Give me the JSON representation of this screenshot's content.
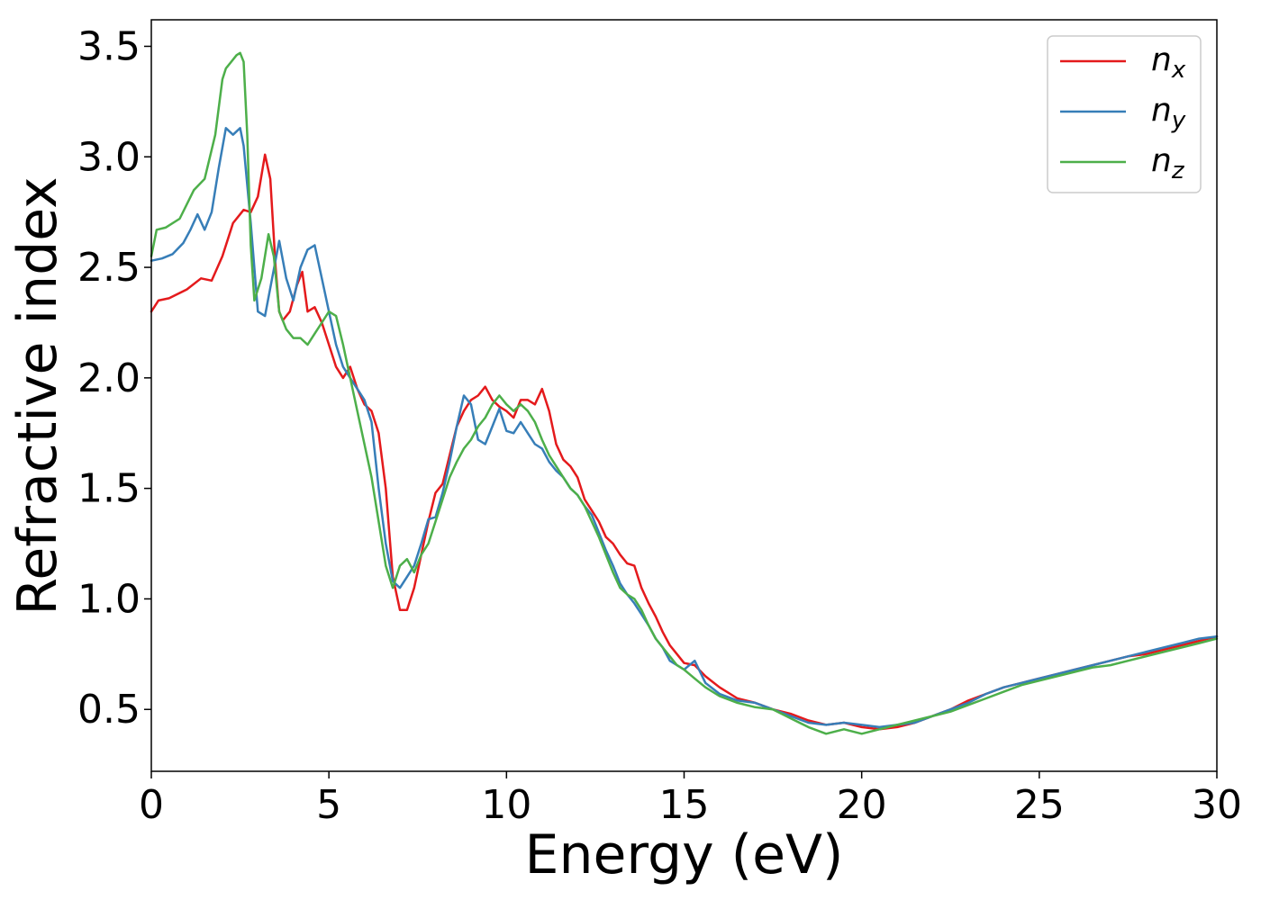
{
  "chart_data": {
    "type": "line",
    "xlabel": "Energy (eV)",
    "ylabel": "Refractive index",
    "xlim": [
      0,
      30
    ],
    "ylim": [
      0.22,
      3.62
    ],
    "xticks": [
      0,
      5,
      10,
      15,
      20,
      25,
      30
    ],
    "xtick_labels": [
      "0",
      "5",
      "10",
      "15",
      "20",
      "25",
      "30"
    ],
    "yticks": [
      0.5,
      1.0,
      1.5,
      2.0,
      2.5,
      3.0,
      3.5
    ],
    "ytick_labels": [
      "0.5",
      "1.0",
      "1.5",
      "2.0",
      "2.5",
      "3.0",
      "3.5"
    ],
    "grid": false,
    "legend_position": "top-right",
    "series": [
      {
        "name": "n_x",
        "name_main": "n",
        "name_sub": "x",
        "color": "#e41a1c",
        "x": [
          0,
          0.2,
          0.5,
          1.0,
          1.4,
          1.7,
          2.0,
          2.3,
          2.6,
          2.8,
          3.0,
          3.2,
          3.35,
          3.5,
          3.6,
          3.7,
          3.9,
          4.1,
          4.25,
          4.4,
          4.6,
          4.8,
          5.0,
          5.2,
          5.4,
          5.6,
          5.8,
          6.0,
          6.2,
          6.4,
          6.6,
          6.8,
          7.0,
          7.2,
          7.4,
          7.6,
          7.8,
          8.0,
          8.2,
          8.4,
          8.6,
          8.8,
          9.0,
          9.2,
          9.4,
          9.6,
          9.8,
          10.0,
          10.2,
          10.4,
          10.6,
          10.8,
          11.0,
          11.2,
          11.4,
          11.6,
          11.8,
          12.0,
          12.2,
          12.4,
          12.6,
          12.8,
          13.0,
          13.2,
          13.4,
          13.6,
          13.8,
          14.0,
          14.2,
          14.4,
          14.6,
          14.8,
          15.0,
          15.3,
          15.6,
          16.0,
          16.5,
          17.0,
          17.5,
          18.0,
          18.5,
          19.0,
          19.5,
          20.0,
          20.5,
          21.0,
          21.5,
          22.0,
          22.5,
          23.0,
          23.5,
          24.0,
          24.5,
          25.0,
          25.5,
          26.0,
          26.5,
          27.0,
          27.5,
          28.0,
          28.5,
          29.0,
          29.5,
          30.0
        ],
        "values": [
          2.3,
          2.35,
          2.36,
          2.4,
          2.45,
          2.44,
          2.55,
          2.7,
          2.76,
          2.75,
          2.82,
          3.01,
          2.9,
          2.5,
          2.3,
          2.26,
          2.3,
          2.42,
          2.48,
          2.3,
          2.32,
          2.25,
          2.15,
          2.05,
          2.0,
          2.05,
          1.95,
          1.88,
          1.85,
          1.75,
          1.5,
          1.1,
          0.95,
          0.95,
          1.05,
          1.2,
          1.35,
          1.48,
          1.52,
          1.65,
          1.78,
          1.85,
          1.9,
          1.92,
          1.96,
          1.9,
          1.87,
          1.85,
          1.82,
          1.9,
          1.9,
          1.88,
          1.95,
          1.85,
          1.7,
          1.63,
          1.6,
          1.55,
          1.45,
          1.4,
          1.35,
          1.28,
          1.25,
          1.2,
          1.16,
          1.15,
          1.05,
          0.98,
          0.92,
          0.85,
          0.79,
          0.75,
          0.71,
          0.7,
          0.65,
          0.6,
          0.55,
          0.53,
          0.5,
          0.48,
          0.45,
          0.43,
          0.44,
          0.42,
          0.41,
          0.42,
          0.44,
          0.47,
          0.5,
          0.54,
          0.57,
          0.6,
          0.62,
          0.64,
          0.66,
          0.68,
          0.7,
          0.72,
          0.74,
          0.75,
          0.77,
          0.79,
          0.81,
          0.83
        ]
      },
      {
        "name": "n_y",
        "name_main": "n",
        "name_sub": "y",
        "color": "#377eb8",
        "x": [
          0,
          0.3,
          0.6,
          0.9,
          1.1,
          1.3,
          1.5,
          1.7,
          1.9,
          2.1,
          2.3,
          2.5,
          2.6,
          2.8,
          3.0,
          3.2,
          3.4,
          3.6,
          3.8,
          4.0,
          4.2,
          4.4,
          4.6,
          4.8,
          5.0,
          5.2,
          5.4,
          5.6,
          5.8,
          6.0,
          6.2,
          6.4,
          6.6,
          6.8,
          7.0,
          7.2,
          7.4,
          7.6,
          7.8,
          8.0,
          8.2,
          8.4,
          8.6,
          8.8,
          9.0,
          9.2,
          9.4,
          9.6,
          9.8,
          10.0,
          10.2,
          10.4,
          10.6,
          10.8,
          11.0,
          11.2,
          11.4,
          11.6,
          11.8,
          12.0,
          12.2,
          12.4,
          12.6,
          12.8,
          13.0,
          13.2,
          13.4,
          13.6,
          13.8,
          14.0,
          14.2,
          14.4,
          14.6,
          14.8,
          15.0,
          15.3,
          15.6,
          16.0,
          16.5,
          17.0,
          17.5,
          18.0,
          18.5,
          19.0,
          19.5,
          20.0,
          20.5,
          21.0,
          21.5,
          22.0,
          22.5,
          23.0,
          23.5,
          24.0,
          24.5,
          25.0,
          25.5,
          26.0,
          26.5,
          27.0,
          27.5,
          28.0,
          28.5,
          29.0,
          29.5,
          30.0
        ],
        "values": [
          2.53,
          2.54,
          2.56,
          2.61,
          2.67,
          2.74,
          2.67,
          2.75,
          2.95,
          3.13,
          3.1,
          3.13,
          3.05,
          2.7,
          2.3,
          2.28,
          2.45,
          2.62,
          2.45,
          2.35,
          2.5,
          2.58,
          2.6,
          2.45,
          2.3,
          2.15,
          2.05,
          2.0,
          1.95,
          1.9,
          1.8,
          1.5,
          1.25,
          1.08,
          1.05,
          1.1,
          1.15,
          1.25,
          1.36,
          1.37,
          1.48,
          1.62,
          1.78,
          1.92,
          1.88,
          1.72,
          1.7,
          1.78,
          1.86,
          1.76,
          1.75,
          1.8,
          1.75,
          1.7,
          1.68,
          1.62,
          1.58,
          1.55,
          1.5,
          1.47,
          1.42,
          1.38,
          1.3,
          1.22,
          1.15,
          1.07,
          1.02,
          0.98,
          0.93,
          0.88,
          0.82,
          0.78,
          0.72,
          0.7,
          0.68,
          0.72,
          0.62,
          0.57,
          0.54,
          0.53,
          0.5,
          0.47,
          0.44,
          0.43,
          0.44,
          0.43,
          0.42,
          0.43,
          0.44,
          0.47,
          0.5,
          0.53,
          0.57,
          0.6,
          0.62,
          0.64,
          0.66,
          0.68,
          0.7,
          0.72,
          0.74,
          0.76,
          0.78,
          0.8,
          0.82,
          0.83
        ]
      },
      {
        "name": "n_z",
        "name_main": "n",
        "name_sub": "z",
        "color": "#4daf4a",
        "x": [
          0,
          0.15,
          0.4,
          0.8,
          1.2,
          1.5,
          1.8,
          2.0,
          2.1,
          2.2,
          2.4,
          2.5,
          2.6,
          2.7,
          2.8,
          2.9,
          3.1,
          3.3,
          3.45,
          3.6,
          3.8,
          4.0,
          4.2,
          4.4,
          4.6,
          4.8,
          5.0,
          5.2,
          5.4,
          5.6,
          5.8,
          6.0,
          6.2,
          6.4,
          6.6,
          6.8,
          7.0,
          7.2,
          7.4,
          7.6,
          7.8,
          8.0,
          8.2,
          8.4,
          8.6,
          8.8,
          9.0,
          9.2,
          9.4,
          9.6,
          9.8,
          10.0,
          10.2,
          10.4,
          10.6,
          10.8,
          11.0,
          11.2,
          11.4,
          11.6,
          11.8,
          12.0,
          12.2,
          12.4,
          12.6,
          12.8,
          13.0,
          13.2,
          13.4,
          13.6,
          13.8,
          14.0,
          14.2,
          14.4,
          14.6,
          14.8,
          15.0,
          15.3,
          15.6,
          16.0,
          16.5,
          17.0,
          17.5,
          18.0,
          18.5,
          19.0,
          19.5,
          20.0,
          20.5,
          21.0,
          21.5,
          22.0,
          22.5,
          23.0,
          23.5,
          24.0,
          24.5,
          25.0,
          25.5,
          26.0,
          26.5,
          27.0,
          27.5,
          28.0,
          28.5,
          29.0,
          29.5,
          30.0
        ],
        "values": [
          2.55,
          2.67,
          2.68,
          2.72,
          2.85,
          2.9,
          3.1,
          3.35,
          3.4,
          3.42,
          3.46,
          3.47,
          3.43,
          3.1,
          2.6,
          2.35,
          2.45,
          2.65,
          2.55,
          2.3,
          2.22,
          2.18,
          2.18,
          2.15,
          2.2,
          2.25,
          2.3,
          2.28,
          2.15,
          2.0,
          1.85,
          1.7,
          1.55,
          1.35,
          1.15,
          1.05,
          1.15,
          1.18,
          1.12,
          1.2,
          1.25,
          1.35,
          1.45,
          1.55,
          1.62,
          1.68,
          1.72,
          1.78,
          1.82,
          1.88,
          1.92,
          1.88,
          1.85,
          1.88,
          1.85,
          1.8,
          1.72,
          1.65,
          1.6,
          1.55,
          1.5,
          1.47,
          1.42,
          1.35,
          1.28,
          1.2,
          1.12,
          1.05,
          1.02,
          1.0,
          0.95,
          0.88,
          0.82,
          0.78,
          0.74,
          0.7,
          0.68,
          0.64,
          0.6,
          0.56,
          0.53,
          0.51,
          0.5,
          0.46,
          0.42,
          0.39,
          0.41,
          0.39,
          0.41,
          0.43,
          0.45,
          0.47,
          0.49,
          0.52,
          0.55,
          0.58,
          0.61,
          0.63,
          0.65,
          0.67,
          0.69,
          0.7,
          0.72,
          0.74,
          0.76,
          0.78,
          0.8,
          0.82
        ]
      }
    ]
  }
}
